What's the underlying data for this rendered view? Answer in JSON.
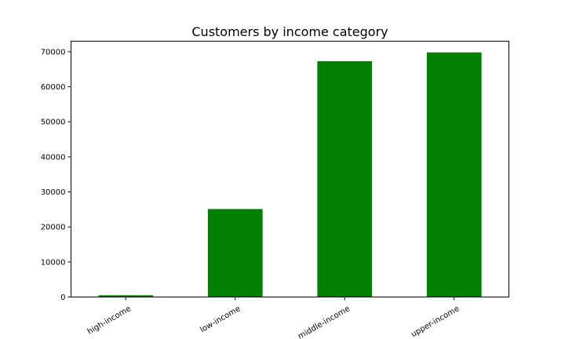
{
  "chart_data": {
    "type": "bar",
    "title": "Customers by income category",
    "xlabel": "",
    "ylabel": "",
    "categories": [
      "high-income",
      "low-income",
      "middle-income",
      "upper-income"
    ],
    "values": [
      500,
      25100,
      67300,
      69800
    ],
    "ylim": [
      0,
      73000
    ],
    "yticks": [
      0,
      10000,
      20000,
      30000,
      40000,
      50000,
      60000,
      70000
    ],
    "bar_color": "#008000",
    "grid": false,
    "legend": "none",
    "xtick_rotation_deg": -30
  }
}
